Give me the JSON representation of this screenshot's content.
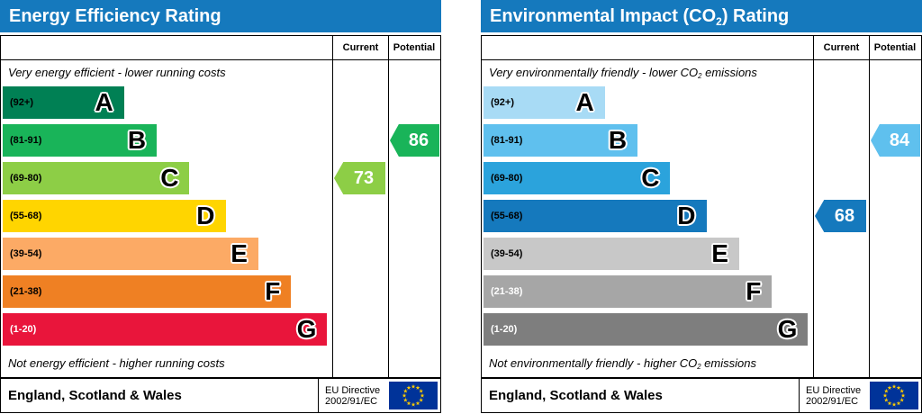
{
  "page": {
    "background": "#ffffff"
  },
  "chart_data": [
    {
      "type": "bar",
      "title": "Energy Efficiency Rating",
      "categories": [
        "A (92+)",
        "B (81-91)",
        "C (69-80)",
        "D (55-68)",
        "E (39-54)",
        "F (21-38)",
        "G (1-20)"
      ],
      "series": [
        {
          "name": "Current",
          "value": 73,
          "band": "C"
        },
        {
          "name": "Potential",
          "value": 86,
          "band": "B"
        }
      ],
      "top_note": "Very energy efficient - lower running costs",
      "bottom_note": "Not energy efficient - higher running costs",
      "footer": "England, Scotland & Wales",
      "directive": "EU Directive 2002/91/EC",
      "value_range": [
        1,
        100
      ]
    },
    {
      "type": "bar",
      "title": "Environmental Impact (CO2) Rating",
      "categories": [
        "A (92+)",
        "B (81-91)",
        "C (69-80)",
        "D (55-68)",
        "E (39-54)",
        "F (21-38)",
        "G (1-20)"
      ],
      "series": [
        {
          "name": "Current",
          "value": 68,
          "band": "D"
        },
        {
          "name": "Potential",
          "value": 84,
          "band": "B"
        }
      ],
      "top_note": "Very environmentally friendly - lower CO2 emissions",
      "bottom_note": "Not environmentally friendly - higher CO2 emissions",
      "footer": "England, Scotland & Wales",
      "directive": "EU Directive 2002/91/EC",
      "value_range": [
        1,
        100
      ]
    }
  ],
  "charts": [
    {
      "title": {
        "pre": "Energy Efficiency Rating",
        "sub": "",
        "post": ""
      },
      "header_color": "#1579bd",
      "columns": {
        "current": "Current",
        "potential": "Potential"
      },
      "top_note": {
        "pre": "Very energy efficient - lower running costs",
        "sub": "",
        "post": ""
      },
      "bottom_note": {
        "pre": "Not energy efficient - higher running costs",
        "sub": "",
        "post": ""
      },
      "bands": [
        {
          "letter": "A",
          "range": "(92+)",
          "color": "#008054",
          "width_pct": 37,
          "range_color": "#000000"
        },
        {
          "letter": "B",
          "range": "(81-91)",
          "color": "#19b459",
          "width_pct": 47,
          "range_color": "#000000"
        },
        {
          "letter": "C",
          "range": "(69-80)",
          "color": "#8dce46",
          "width_pct": 57,
          "range_color": "#000000"
        },
        {
          "letter": "D",
          "range": "(55-68)",
          "color": "#ffd500",
          "width_pct": 68,
          "range_color": "#000000"
        },
        {
          "letter": "E",
          "range": "(39-54)",
          "color": "#fcaa65",
          "width_pct": 78,
          "range_color": "#000000"
        },
        {
          "letter": "F",
          "range": "(21-38)",
          "color": "#ef8023",
          "width_pct": 88,
          "range_color": "#000000"
        },
        {
          "letter": "G",
          "range": "(1-20)",
          "color": "#e9153b",
          "width_pct": 99,
          "range_color": "#ffffff"
        }
      ],
      "current": {
        "value": "73",
        "color": "#8dce46",
        "band_index": 2
      },
      "potential": {
        "value": "86",
        "color": "#19b459",
        "band_index": 1
      },
      "footer": {
        "region": "England, Scotland & Wales",
        "directive_line1": "EU Directive",
        "directive_line2": "2002/91/EC",
        "flag_colors": {
          "field": "#003399",
          "stars": "#ffcc00"
        }
      }
    },
    {
      "title": {
        "pre": "Environmental Impact (CO",
        "sub": "2",
        "post": ") Rating"
      },
      "header_color": "#1579bd",
      "columns": {
        "current": "Current",
        "potential": "Potential"
      },
      "top_note": {
        "pre": "Very environmentally friendly - lower CO",
        "sub": "2",
        "post": " emissions"
      },
      "bottom_note": {
        "pre": "Not environmentally friendly - higher CO",
        "sub": "2",
        "post": " emissions"
      },
      "bands": [
        {
          "letter": "A",
          "range": "(92+)",
          "color": "#a8dbf5",
          "width_pct": 37,
          "range_color": "#000000"
        },
        {
          "letter": "B",
          "range": "(81-91)",
          "color": "#5fc0ee",
          "width_pct": 47,
          "range_color": "#000000"
        },
        {
          "letter": "C",
          "range": "(69-80)",
          "color": "#2ba3dc",
          "width_pct": 57,
          "range_color": "#000000"
        },
        {
          "letter": "D",
          "range": "(55-68)",
          "color": "#1579bd",
          "width_pct": 68,
          "range_color": "#000000"
        },
        {
          "letter": "E",
          "range": "(39-54)",
          "color": "#c8c8c8",
          "width_pct": 78,
          "range_color": "#000000"
        },
        {
          "letter": "F",
          "range": "(21-38)",
          "color": "#a6a6a6",
          "width_pct": 88,
          "range_color": "#ffffff"
        },
        {
          "letter": "G",
          "range": "(1-20)",
          "color": "#7e7e7e",
          "width_pct": 99,
          "range_color": "#ffffff"
        }
      ],
      "current": {
        "value": "68",
        "color": "#1579bd",
        "band_index": 3
      },
      "potential": {
        "value": "84",
        "color": "#5fc0ee",
        "band_index": 1
      },
      "footer": {
        "region": "England, Scotland & Wales",
        "directive_line1": "EU Directive",
        "directive_line2": "2002/91/EC",
        "flag_colors": {
          "field": "#003399",
          "stars": "#ffcc00"
        }
      }
    }
  ]
}
